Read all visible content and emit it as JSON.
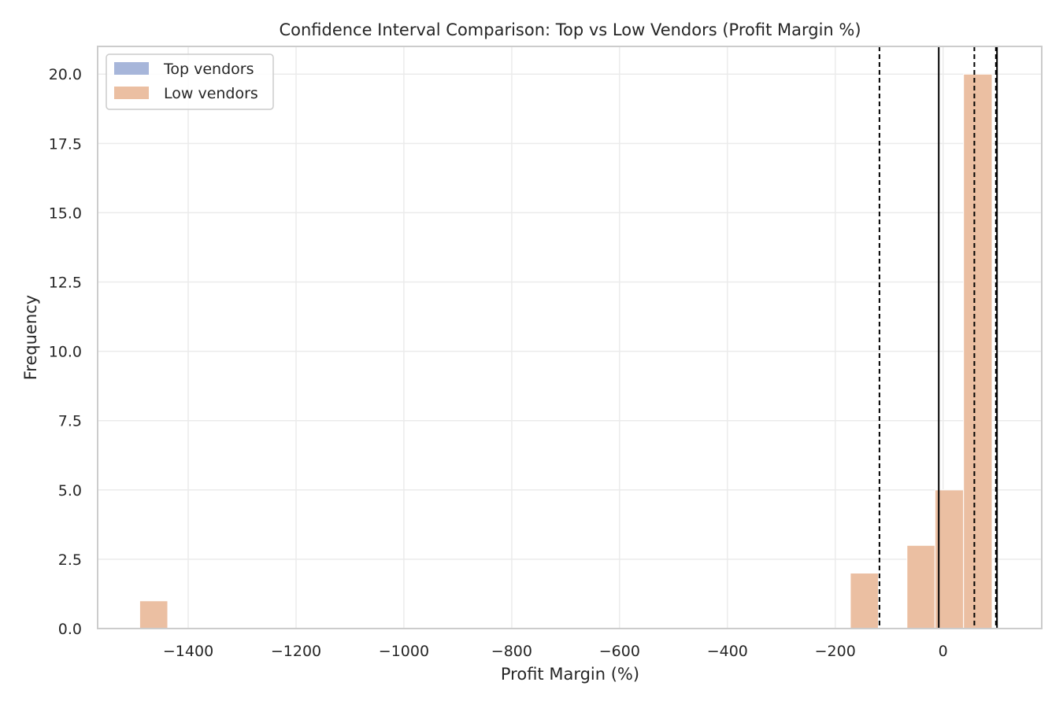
{
  "chart_data": {
    "type": "bar",
    "title": "Confidence Interval Comparison: Top vs Low Vendors (Profit Margin %)",
    "xlabel": "Profit Margin (%)",
    "ylabel": "Frequency",
    "xlim": [
      -1568,
      183
    ],
    "ylim": [
      0,
      21
    ],
    "x_ticks": [
      -1400,
      -1200,
      -1000,
      -800,
      -600,
      -400,
      -200,
      0
    ],
    "y_ticks": [
      0.0,
      2.5,
      5.0,
      7.5,
      10.0,
      12.5,
      15.0,
      17.5,
      20.0
    ],
    "grid": true,
    "legend_position": "top-left",
    "series": [
      {
        "name": "Top vendors",
        "color": "#a7b6da",
        "bins": []
      },
      {
        "name": "Low vendors",
        "color": "#ebbfa2",
        "bins": [
          {
            "x0": -1490,
            "x1": -1438,
            "count": 1
          },
          {
            "x0": -172,
            "x1": -120,
            "count": 2
          },
          {
            "x0": -67,
            "x1": -15,
            "count": 3
          },
          {
            "x0": -15,
            "x1": 38,
            "count": 5
          },
          {
            "x0": 38,
            "x1": 91,
            "count": 20
          }
        ]
      }
    ],
    "vlines": [
      {
        "x": -118,
        "style": "dashed",
        "color": "#000000"
      },
      {
        "x": -8,
        "style": "solid",
        "color": "#000000"
      },
      {
        "x": 58,
        "style": "dashed",
        "color": "#000000"
      },
      {
        "x": 98,
        "style": "dashed",
        "color": "#000000"
      },
      {
        "x": 100,
        "style": "solid",
        "color": "#000000"
      }
    ]
  }
}
